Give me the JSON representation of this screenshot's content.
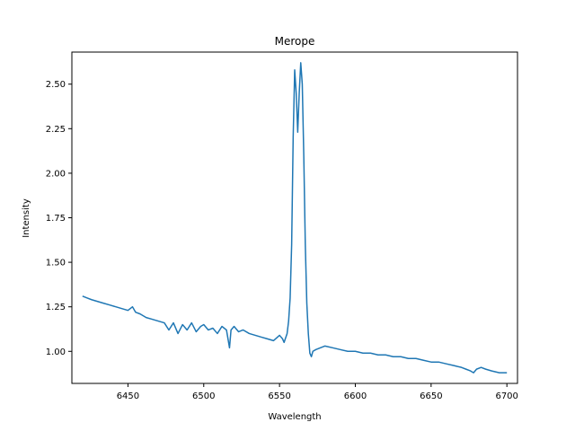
{
  "chart_data": {
    "type": "line",
    "title": "Merope",
    "xlabel": "Wavelength",
    "ylabel": "Intensity",
    "xlim": [
      6413,
      6707
    ],
    "ylim": [
      0.82,
      2.68
    ],
    "xticks": [
      6450,
      6500,
      6550,
      6600,
      6650,
      6700
    ],
    "yticks": [
      1.0,
      1.25,
      1.5,
      1.75,
      2.0,
      2.25,
      2.5
    ],
    "xtick_labels": [
      "6450",
      "6500",
      "6550",
      "6600",
      "6650",
      "6700"
    ],
    "ytick_labels": [
      "1.00",
      "1.25",
      "1.50",
      "1.75",
      "2.00",
      "2.25",
      "2.50"
    ],
    "grid": false,
    "series": [
      {
        "color": "#1f77b4",
        "x": [
          6420,
          6423,
          6426,
          6430,
          6434,
          6438,
          6442,
          6446,
          6450,
          6453,
          6455,
          6458,
          6462,
          6466,
          6470,
          6474,
          6477,
          6480,
          6483,
          6486,
          6489,
          6492,
          6495,
          6498,
          6500,
          6503,
          6506,
          6509,
          6512,
          6515,
          6517,
          6518,
          6520,
          6523,
          6526,
          6530,
          6534,
          6538,
          6542,
          6546,
          6550,
          6552,
          6553,
          6555,
          6556,
          6557,
          6558,
          6559,
          6560,
          6561,
          6562,
          6563,
          6564,
          6565,
          6566,
          6567,
          6568,
          6569,
          6570,
          6571,
          6572,
          6574,
          6577,
          6580,
          6585,
          6590,
          6595,
          6600,
          6605,
          6610,
          6615,
          6620,
          6625,
          6630,
          6635,
          6640,
          6645,
          6650,
          6655,
          6660,
          6665,
          6670,
          6673,
          6676,
          6678,
          6680,
          6683,
          6686,
          6690,
          6695,
          6700
        ],
        "y": [
          1.31,
          1.3,
          1.29,
          1.28,
          1.27,
          1.26,
          1.25,
          1.24,
          1.23,
          1.25,
          1.22,
          1.21,
          1.19,
          1.18,
          1.17,
          1.16,
          1.12,
          1.16,
          1.1,
          1.15,
          1.12,
          1.16,
          1.11,
          1.14,
          1.15,
          1.12,
          1.13,
          1.1,
          1.14,
          1.12,
          1.02,
          1.12,
          1.14,
          1.11,
          1.12,
          1.1,
          1.09,
          1.08,
          1.07,
          1.06,
          1.09,
          1.07,
          1.05,
          1.1,
          1.17,
          1.3,
          1.6,
          2.2,
          2.58,
          2.45,
          2.23,
          2.45,
          2.62,
          2.5,
          2.1,
          1.6,
          1.27,
          1.1,
          0.99,
          0.97,
          1.0,
          1.01,
          1.02,
          1.03,
          1.02,
          1.01,
          1.0,
          1.0,
          0.99,
          0.99,
          0.98,
          0.98,
          0.97,
          0.97,
          0.96,
          0.96,
          0.95,
          0.94,
          0.94,
          0.93,
          0.92,
          0.91,
          0.9,
          0.89,
          0.88,
          0.9,
          0.91,
          0.9,
          0.89,
          0.88,
          0.88
        ]
      }
    ]
  }
}
